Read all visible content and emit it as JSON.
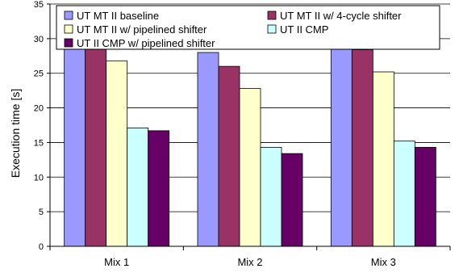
{
  "chart_data": {
    "type": "bar",
    "title": "",
    "xlabel": "",
    "ylabel": "Execution time [s]",
    "ylim": [
      0,
      35
    ],
    "yticks": [
      0,
      5,
      10,
      15,
      20,
      25,
      30,
      35
    ],
    "grid": "horizontal",
    "legend_position": "top",
    "categories": [
      "Mix 1",
      "Mix 2",
      "Mix 3"
    ],
    "series": [
      {
        "name": "UT MT II baseline",
        "color": "#9999ff",
        "values": [
          31.0,
          28.0,
          30.1
        ]
      },
      {
        "name": "UT MT II w/ 4-cycle shifter",
        "color": "#993366",
        "values": [
          29.7,
          26.0,
          28.4
        ]
      },
      {
        "name": "UT MT II w/ pipelined shifter",
        "color": "#ffffcc",
        "values": [
          26.8,
          22.8,
          25.2
        ]
      },
      {
        "name": "UT II CMP",
        "color": "#ccffff",
        "values": [
          17.1,
          14.3,
          15.2
        ]
      },
      {
        "name": "UT II CMP w/ pipelined shifter",
        "color": "#660066",
        "values": [
          16.7,
          13.4,
          14.3
        ]
      }
    ]
  }
}
